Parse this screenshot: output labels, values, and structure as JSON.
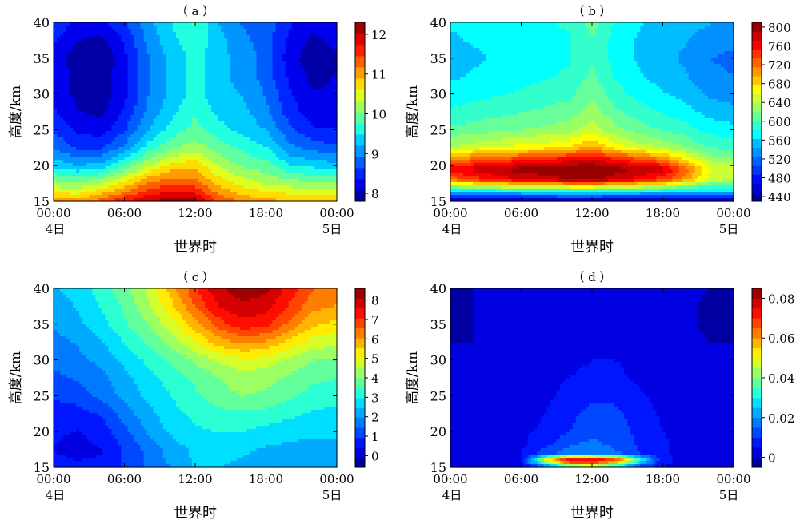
{
  "chart_data": [
    {
      "type": "heatmap",
      "panel_label": "（ a ）",
      "xlabel": "世界时",
      "ylabel": "高度/km",
      "x_ticks": [
        "00:00",
        "06:00",
        "12:00",
        "18:00",
        "00:00"
      ],
      "x_tick_values": [
        0,
        6,
        12,
        18,
        24
      ],
      "x_day_labels": [
        "4日",
        "5日"
      ],
      "ylim": [
        15,
        40
      ],
      "y_ticks": [
        15,
        20,
        25,
        30,
        35,
        40
      ],
      "colorbar": {
        "min": 7.8,
        "max": 12.3,
        "ticks": [
          8,
          9,
          10,
          11,
          12
        ],
        "levels": 16
      },
      "z_min": 7.8,
      "z_max": 12.3,
      "x": [
        0,
        2,
        4,
        6,
        8,
        10,
        12,
        14,
        16,
        18,
        20,
        22,
        24
      ],
      "y": [
        15,
        17.5,
        20,
        22.5,
        25,
        27.5,
        30,
        32.5,
        35,
        37.5,
        40
      ],
      "z": [
        [
          11.0,
          11.0,
          11.3,
          11.7,
          12.0,
          12.2,
          12.1,
          11.4,
          11.1,
          11.0,
          10.9,
          10.8,
          10.8
        ],
        [
          10.2,
          10.1,
          10.3,
          10.7,
          11.2,
          11.4,
          11.3,
          10.8,
          10.5,
          10.3,
          10.2,
          10.1,
          10.1
        ],
        [
          9.4,
          9.2,
          9.3,
          9.8,
          10.3,
          10.7,
          10.8,
          10.3,
          10.0,
          9.9,
          9.5,
          9.4,
          9.3
        ],
        [
          8.9,
          8.6,
          8.6,
          9.0,
          9.6,
          10.0,
          10.2,
          9.9,
          9.7,
          9.5,
          9.0,
          8.8,
          8.7
        ],
        [
          8.6,
          8.3,
          8.2,
          8.6,
          9.2,
          9.6,
          9.9,
          9.6,
          9.4,
          9.2,
          8.7,
          8.4,
          8.4
        ],
        [
          8.4,
          8.1,
          8.0,
          8.4,
          9.0,
          9.4,
          9.7,
          9.4,
          9.3,
          9.0,
          8.5,
          8.2,
          8.2
        ],
        [
          8.3,
          8.0,
          7.9,
          8.3,
          8.9,
          9.3,
          9.6,
          9.3,
          9.2,
          8.9,
          8.4,
          8.1,
          8.1
        ],
        [
          8.3,
          8.0,
          7.9,
          8.3,
          8.9,
          9.3,
          9.6,
          9.3,
          9.1,
          8.8,
          8.3,
          8.0,
          8.1
        ],
        [
          8.3,
          7.9,
          7.8,
          8.3,
          8.9,
          9.3,
          9.6,
          9.3,
          9.1,
          8.8,
          8.2,
          7.9,
          8.0
        ],
        [
          8.4,
          8.1,
          8.0,
          8.4,
          9.0,
          9.4,
          9.7,
          9.3,
          9.0,
          8.8,
          8.3,
          8.0,
          8.2
        ],
        [
          8.6,
          8.3,
          8.3,
          8.6,
          9.1,
          9.5,
          9.8,
          9.2,
          8.9,
          8.8,
          8.4,
          8.2,
          8.3
        ]
      ]
    },
    {
      "type": "heatmap",
      "panel_label": "（ b ）",
      "xlabel": "世界时",
      "ylabel": "高度/km",
      "x_ticks": [
        "00:00",
        "06:00",
        "12:00",
        "18:00",
        "00:00"
      ],
      "x_tick_values": [
        0,
        6,
        12,
        18,
        24
      ],
      "x_day_labels": [
        "4日",
        "5日"
      ],
      "ylim": [
        15,
        40
      ],
      "y_ticks": [
        15,
        20,
        25,
        30,
        35,
        40
      ],
      "colorbar": {
        "min": 430,
        "max": 810,
        "ticks": [
          440,
          480,
          520,
          560,
          600,
          640,
          680,
          720,
          760,
          800
        ],
        "levels": 20
      },
      "z_min": 430,
      "z_max": 810,
      "x": [
        0,
        2,
        4,
        6,
        8,
        10,
        12,
        14,
        16,
        18,
        20,
        22,
        24
      ],
      "y": [
        15,
        16.5,
        18,
        19.5,
        21,
        22.5,
        25,
        27.5,
        30,
        32.5,
        35,
        37.5,
        40
      ],
      "z": [
        [
          440,
          440,
          440,
          440,
          440,
          440,
          440,
          440,
          440,
          440,
          440,
          440,
          440
        ],
        [
          560,
          570,
          575,
          580,
          585,
          590,
          590,
          585,
          580,
          575,
          565,
          560,
          560
        ],
        [
          720,
          740,
          760,
          770,
          780,
          790,
          795,
          780,
          760,
          740,
          700,
          650,
          640
        ],
        [
          760,
          780,
          790,
          800,
          805,
          810,
          810,
          800,
          790,
          780,
          720,
          660,
          650
        ],
        [
          700,
          720,
          730,
          740,
          750,
          760,
          770,
          750,
          730,
          710,
          670,
          630,
          620
        ],
        [
          640,
          650,
          660,
          665,
          670,
          680,
          700,
          670,
          650,
          640,
          620,
          600,
          595
        ],
        [
          605,
          610,
          615,
          620,
          625,
          630,
          650,
          625,
          610,
          600,
          590,
          575,
          570
        ],
        [
          585,
          590,
          595,
          600,
          605,
          610,
          630,
          605,
          590,
          580,
          570,
          555,
          550
        ],
        [
          570,
          575,
          580,
          585,
          590,
          595,
          615,
          590,
          575,
          565,
          555,
          540,
          535
        ],
        [
          560,
          565,
          570,
          575,
          580,
          585,
          605,
          580,
          565,
          555,
          545,
          530,
          525
        ],
        [
          555,
          560,
          565,
          570,
          575,
          580,
          600,
          575,
          560,
          550,
          540,
          525,
          520
        ],
        [
          560,
          565,
          565,
          570,
          575,
          580,
          600,
          575,
          560,
          550,
          545,
          535,
          530
        ],
        [
          565,
          570,
          570,
          575,
          580,
          585,
          610,
          580,
          565,
          555,
          550,
          545,
          540
        ]
      ]
    },
    {
      "type": "heatmap",
      "panel_label": "（ c ）",
      "xlabel": "世界时",
      "ylabel": "高度/km",
      "x_ticks": [
        "00:00",
        "06:00",
        "12:00",
        "18:00",
        "00:00"
      ],
      "x_tick_values": [
        0,
        6,
        12,
        18,
        24
      ],
      "x_day_labels": [
        "4日",
        "5日"
      ],
      "ylim": [
        15,
        40
      ],
      "y_ticks": [
        15,
        20,
        25,
        30,
        35,
        40
      ],
      "colorbar": {
        "min": -0.6,
        "max": 8.6,
        "ticks": [
          0,
          1,
          2,
          3,
          4,
          5,
          6,
          7,
          8
        ],
        "levels": 18
      },
      "z_min": -0.6,
      "z_max": 8.6,
      "x": [
        0,
        2,
        4,
        6,
        8,
        10,
        12,
        14,
        16,
        18,
        20,
        22,
        24
      ],
      "y": [
        15,
        17.5,
        20,
        22.5,
        25,
        27.5,
        30,
        32.5,
        35,
        37.5,
        40
      ],
      "z": [
        [
          0.6,
          0.5,
          0.5,
          1.0,
          1.5,
          2.0,
          2.5,
          2.5,
          2.3,
          2.0,
          2.0,
          2.0,
          2.0
        ],
        [
          0.4,
          0.3,
          0.4,
          1.0,
          1.6,
          2.2,
          2.6,
          2.7,
          2.6,
          2.4,
          2.3,
          2.2,
          2.2
        ],
        [
          0.5,
          0.4,
          0.6,
          1.3,
          2.0,
          2.6,
          2.9,
          3.0,
          3.0,
          2.8,
          2.7,
          2.6,
          2.6
        ],
        [
          0.7,
          0.7,
          1.0,
          1.7,
          2.3,
          2.8,
          3.1,
          3.3,
          3.4,
          3.3,
          3.1,
          2.9,
          2.8
        ],
        [
          1.0,
          1.2,
          1.6,
          2.1,
          2.6,
          3.0,
          3.4,
          3.8,
          4.0,
          3.9,
          3.6,
          3.3,
          3.2
        ],
        [
          1.3,
          1.5,
          1.8,
          2.3,
          2.8,
          3.2,
          3.6,
          4.0,
          4.3,
          4.2,
          3.9,
          3.6,
          3.5
        ],
        [
          1.6,
          1.8,
          2.1,
          2.6,
          3.1,
          3.6,
          4.1,
          4.6,
          4.9,
          4.8,
          4.4,
          4.0,
          3.9
        ],
        [
          1.8,
          2.0,
          2.4,
          3.0,
          3.6,
          4.2,
          5.0,
          5.8,
          6.2,
          6.0,
          5.4,
          4.8,
          4.7
        ],
        [
          2.0,
          2.3,
          2.8,
          3.4,
          4.0,
          4.8,
          5.8,
          6.8,
          7.4,
          7.2,
          6.4,
          5.6,
          5.4
        ],
        [
          2.2,
          2.5,
          3.0,
          3.6,
          4.4,
          5.4,
          6.6,
          7.6,
          8.0,
          7.8,
          7.0,
          6.2,
          6.0
        ],
        [
          2.4,
          2.7,
          3.2,
          3.8,
          4.6,
          5.8,
          7.0,
          8.0,
          8.4,
          8.2,
          7.4,
          6.6,
          6.4
        ]
      ]
    },
    {
      "type": "heatmap",
      "panel_label": "（ d ）",
      "xlabel": "世界时",
      "ylabel": "高度/km",
      "x_ticks": [
        "00:00",
        "06:00",
        "12:00",
        "18:00",
        "00:00"
      ],
      "x_tick_values": [
        0,
        6,
        12,
        18,
        24
      ],
      "x_day_labels": [
        "4日",
        "5日"
      ],
      "ylim": [
        15,
        40
      ],
      "y_ticks": [
        15,
        20,
        25,
        30,
        35,
        40
      ],
      "colorbar": {
        "min": -0.005,
        "max": 0.085,
        "ticks": [
          0,
          0.02,
          0.04,
          0.06,
          0.08
        ],
        "tick_labels": [
          "0",
          "0.02",
          "0.04",
          "0.06",
          "0.08"
        ],
        "levels": 18
      },
      "z_min": -0.005,
      "z_max": 0.085,
      "x": [
        0,
        2,
        4,
        6,
        8,
        10,
        12,
        14,
        16,
        18,
        20,
        22,
        24
      ],
      "y": [
        15,
        16,
        17,
        18.5,
        20,
        22.5,
        25,
        27.5,
        30,
        32.5,
        35,
        37.5,
        40
      ],
      "z": [
        [
          0.002,
          0.002,
          0.003,
          0.004,
          0.012,
          0.03,
          0.04,
          0.026,
          0.01,
          0.005,
          0.004,
          0.003,
          0.003
        ],
        [
          0.002,
          0.002,
          0.003,
          0.005,
          0.05,
          0.082,
          0.082,
          0.072,
          0.035,
          0.006,
          0.004,
          0.003,
          0.003
        ],
        [
          0.001,
          0.002,
          0.003,
          0.005,
          0.012,
          0.018,
          0.02,
          0.016,
          0.01,
          0.006,
          0.003,
          0.002,
          0.002
        ],
        [
          0.001,
          0.001,
          0.002,
          0.004,
          0.008,
          0.013,
          0.016,
          0.013,
          0.009,
          0.006,
          0.003,
          0.002,
          0.001
        ],
        [
          0.0,
          0.001,
          0.002,
          0.004,
          0.006,
          0.01,
          0.014,
          0.012,
          0.009,
          0.005,
          0.002,
          0.001,
          0.001
        ],
        [
          0.0,
          0.0,
          0.002,
          0.003,
          0.005,
          0.008,
          0.012,
          0.011,
          0.008,
          0.004,
          0.002,
          0.001,
          0.0
        ],
        [
          0.0,
          0.0,
          0.001,
          0.003,
          0.004,
          0.006,
          0.009,
          0.009,
          0.006,
          0.003,
          0.001,
          0.0,
          0.0
        ],
        [
          0.0,
          0.0,
          0.001,
          0.003,
          0.004,
          0.005,
          0.006,
          0.006,
          0.004,
          0.003,
          0.001,
          0.0,
          0.0
        ],
        [
          0.0,
          0.0,
          0.001,
          0.003,
          0.004,
          0.004,
          0.005,
          0.005,
          0.004,
          0.003,
          0.001,
          0.0,
          0.0
        ],
        [
          0.0,
          0.0,
          0.001,
          0.003,
          0.004,
          0.004,
          0.004,
          0.004,
          0.004,
          0.003,
          0.001,
          0.0,
          0.0
        ],
        [
          -0.001,
          0.0,
          0.001,
          0.003,
          0.004,
          0.004,
          0.004,
          0.004,
          0.004,
          0.003,
          0.001,
          -0.001,
          -0.001
        ],
        [
          -0.001,
          0.0,
          0.001,
          0.003,
          0.004,
          0.004,
          0.004,
          0.004,
          0.004,
          0.003,
          0.001,
          -0.001,
          -0.001
        ],
        [
          -0.001,
          0.0,
          0.001,
          0.003,
          0.004,
          0.004,
          0.004,
          0.004,
          0.004,
          0.003,
          0.001,
          0.0,
          0.0
        ]
      ]
    }
  ]
}
